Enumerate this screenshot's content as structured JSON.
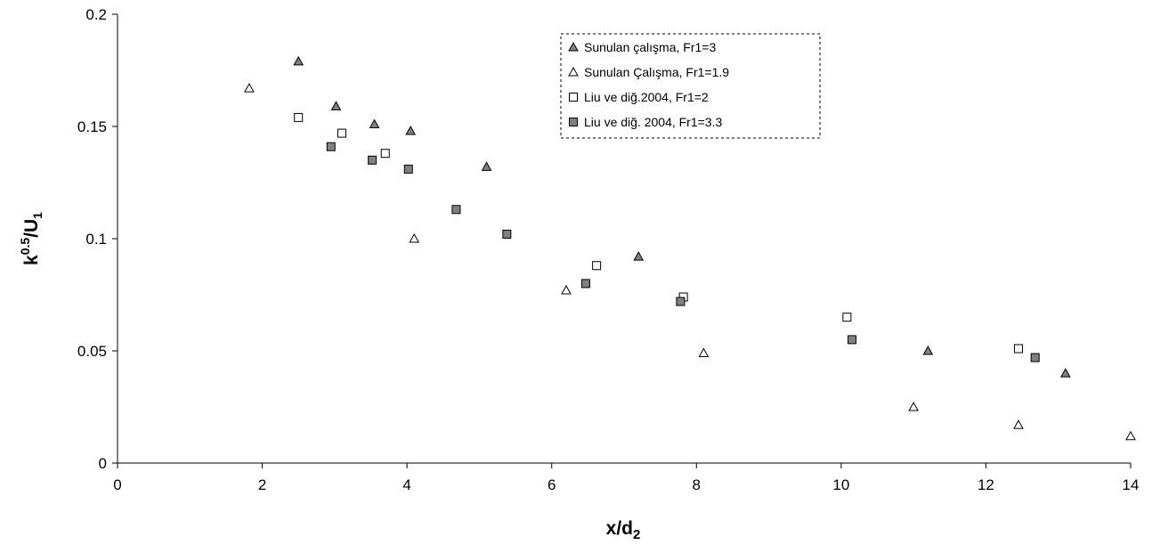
{
  "chart_data": {
    "type": "scatter",
    "title": "",
    "xlabel": {
      "main": "x/d",
      "sub": "2"
    },
    "ylabel": {
      "main": "k",
      "sup": "0.5",
      "mid": "/U",
      "sub": "1"
    },
    "xlim": [
      0,
      14
    ],
    "ylim": [
      0,
      0.2
    ],
    "x_ticks": [
      0,
      2,
      4,
      6,
      8,
      10,
      12,
      14
    ],
    "y_ticks": [
      0,
      0.05,
      0.1,
      0.15,
      0.2
    ],
    "x_tick_labels": [
      "0",
      "2",
      "4",
      "6",
      "8",
      "10",
      "12",
      "14"
    ],
    "y_tick_labels": [
      "0",
      "0.05",
      "0.1",
      "0.15",
      "0.2"
    ],
    "grid": false,
    "legend_position": "top-right",
    "series": [
      {
        "name": "Sunulan çalışma, Fr1=3",
        "marker": "triangle",
        "fill": "#808080",
        "points": [
          [
            2.5,
            0.179
          ],
          [
            3.02,
            0.159
          ],
          [
            3.55,
            0.151
          ],
          [
            4.05,
            0.148
          ],
          [
            5.1,
            0.132
          ],
          [
            7.2,
            0.092
          ],
          [
            11.2,
            0.05
          ],
          [
            13.1,
            0.04
          ]
        ]
      },
      {
        "name": "Sunulan Çalışma, Fr1=1.9",
        "marker": "triangle",
        "fill": "#ffffff",
        "points": [
          [
            1.82,
            0.167
          ],
          [
            4.1,
            0.1
          ],
          [
            6.2,
            0.077
          ],
          [
            8.1,
            0.049
          ],
          [
            11.0,
            0.025
          ],
          [
            12.45,
            0.017
          ],
          [
            14.0,
            0.012
          ]
        ]
      },
      {
        "name": "Liu ve diğ.2004, Fr1=2",
        "marker": "square",
        "fill": "#ffffff",
        "points": [
          [
            2.5,
            0.154
          ],
          [
            3.1,
            0.147
          ],
          [
            3.7,
            0.138
          ],
          [
            6.62,
            0.088
          ],
          [
            7.82,
            0.074
          ],
          [
            10.08,
            0.065
          ],
          [
            12.45,
            0.051
          ]
        ]
      },
      {
        "name": "Liu ve diğ. 2004, Fr1=3.3",
        "marker": "square",
        "fill": "#808080",
        "points": [
          [
            2.95,
            0.141
          ],
          [
            3.52,
            0.135
          ],
          [
            4.02,
            0.131
          ],
          [
            4.68,
            0.113
          ],
          [
            5.38,
            0.102
          ],
          [
            6.47,
            0.08
          ],
          [
            7.78,
            0.072
          ],
          [
            10.15,
            0.055
          ],
          [
            12.68,
            0.047
          ]
        ]
      }
    ]
  }
}
